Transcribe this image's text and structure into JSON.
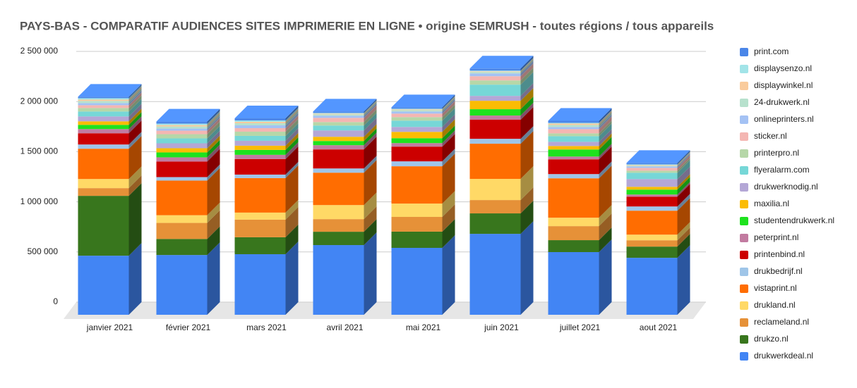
{
  "chart_data": {
    "type": "bar3d_stacked",
    "title": "PAYS-BAS - COMPARATIF AUDIENCES SITES IMPRIMERIE EN LIGNE • origine SEMRUSH - toutes régions / tous appareils",
    "categories": [
      "janvier 2021",
      "février 2021",
      "mars 2021",
      "avril 2021",
      "mai 2021",
      "juin 2021",
      "juillet 2021",
      "aout 2021"
    ],
    "ylim": [
      0,
      2500000
    ],
    "yticks": [
      0,
      {
        "value": 500000,
        "label": "500 000"
      },
      {
        "value": 1000000,
        "label": "1 000 000"
      },
      {
        "value": 1500000,
        "label": "1 500 000"
      },
      {
        "value": 2000000,
        "label": "2 000 000"
      },
      {
        "value": 2500000,
        "label": "2 500 000"
      }
    ],
    "grid": true,
    "legend": "right",
    "series": [
      {
        "name": "drukwerkdeal.nl",
        "color": "#4285f4",
        "values": [
          589000,
          596000,
          604000,
          695000,
          667000,
          807000,
          625000,
          568000
        ]
      },
      {
        "name": "drukzo.nl",
        "color": "#38761d",
        "values": [
          597000,
          160000,
          169000,
          133000,
          162000,
          204000,
          119000,
          112000
        ]
      },
      {
        "name": "reclameland.nl",
        "color": "#e69138",
        "values": [
          77000,
          160000,
          176000,
          126000,
          147000,
          133000,
          140000,
          63000
        ]
      },
      {
        "name": "drukland.nl",
        "color": "#ffd966",
        "values": [
          91000,
          77000,
          70000,
          140000,
          133000,
          211000,
          84000,
          56000
        ]
      },
      {
        "name": "vistaprint.nl",
        "color": "#ff6d01",
        "values": [
          302000,
          345000,
          344000,
          323000,
          372000,
          351000,
          393000,
          239000
        ]
      },
      {
        "name": "drukbedrijf.nl",
        "color": "#9fc5e8",
        "values": [
          42000,
          35000,
          35000,
          42000,
          49000,
          49000,
          42000,
          42000
        ]
      },
      {
        "name": "printenbind.nl",
        "color": "#cc0000",
        "values": [
          112000,
          155000,
          155000,
          190000,
          147000,
          190000,
          147000,
          98000
        ]
      },
      {
        "name": "peterprint.nl",
        "color": "#c27ba0",
        "values": [
          42000,
          42000,
          42000,
          42000,
          35000,
          42000,
          28000,
          21000
        ]
      },
      {
        "name": "studentendrukwerk.nl",
        "color": "#1ee21e",
        "values": [
          42000,
          49000,
          49000,
          42000,
          49000,
          63000,
          70000,
          49000
        ]
      },
      {
        "name": "maxilia.nl",
        "color": "#fbbc04",
        "values": [
          35000,
          42000,
          42000,
          42000,
          63000,
          84000,
          35000,
          28000
        ]
      },
      {
        "name": "drukwerknodig.nl",
        "color": "#b4a7d6",
        "values": [
          49000,
          49000,
          49000,
          63000,
          49000,
          49000,
          42000,
          77000
        ]
      },
      {
        "name": "flyeralarm.com",
        "color": "#76d7d7",
        "values": [
          49000,
          49000,
          49000,
          49000,
          63000,
          112000,
          56000,
          63000
        ]
      },
      {
        "name": "printerpro.nl",
        "color": "#b6d7a8",
        "values": [
          35000,
          42000,
          42000,
          35000,
          35000,
          42000,
          28000,
          21000
        ]
      },
      {
        "name": "sticker.nl",
        "color": "#f4b6b2",
        "values": [
          28000,
          35000,
          35000,
          42000,
          35000,
          42000,
          42000,
          28000
        ]
      },
      {
        "name": "onlineprinters.nl",
        "color": "#a4c2f4",
        "values": [
          21000,
          21000,
          28000,
          21000,
          21000,
          28000,
          21000,
          14000
        ]
      },
      {
        "name": "24-drukwerk.nl",
        "color": "#b7e1cd",
        "values": [
          21000,
          21000,
          21000,
          14000,
          14000,
          14000,
          21000,
          7000
        ]
      },
      {
        "name": "displaywinkel.nl",
        "color": "#f9cb9c",
        "values": [
          14000,
          14000,
          14000,
          7000,
          7000,
          7000,
          14000,
          7000
        ]
      },
      {
        "name": "displaysenzo.nl",
        "color": "#a2e4e8",
        "values": [
          14000,
          14000,
          14000,
          7000,
          7000,
          7000,
          7000,
          7000
        ]
      },
      {
        "name": "print.com",
        "color": "#4a86e8",
        "values": [
          14000,
          21000,
          21000,
          14000,
          14000,
          21000,
          21000,
          14000
        ]
      }
    ]
  }
}
